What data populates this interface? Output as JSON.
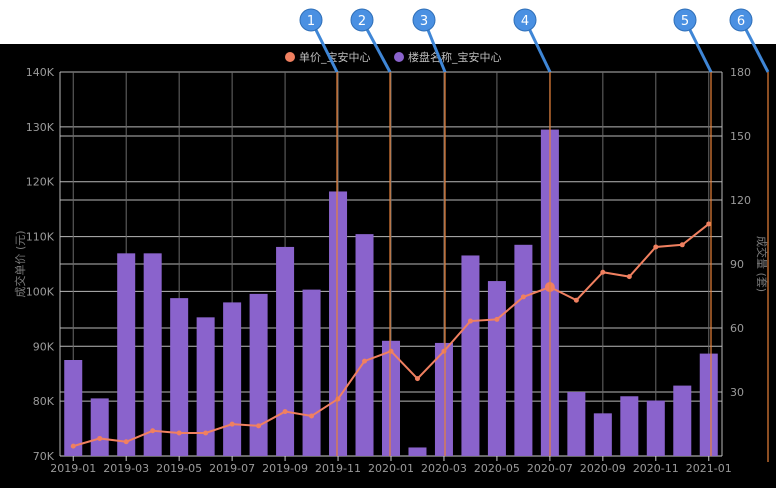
{
  "chart_data": {
    "type": "bar",
    "categories": [
      "2019-01",
      "2019-02",
      "2019-03",
      "2019-04",
      "2019-05",
      "2019-06",
      "2019-07",
      "2019-08",
      "2019-09",
      "2019-10",
      "2019-11",
      "2019-12",
      "2020-01",
      "2020-02",
      "2020-03",
      "2020-04",
      "2020-05",
      "2020-06",
      "2020-07",
      "2020-08",
      "2020-09",
      "2020-10",
      "2020-11",
      "2020-12",
      "2021-01"
    ],
    "x_tick_labels": [
      "2019-01",
      "2019-03",
      "2019-05",
      "2019-07",
      "2019-09",
      "2019-11",
      "2020-01",
      "2020-03",
      "2020-05",
      "2020-07",
      "2020-09",
      "2020-11",
      "2021-01"
    ],
    "y_left": {
      "label": "成交单价 (元)",
      "ticks": [
        "70K",
        "80K",
        "90K",
        "100K",
        "110K",
        "120K",
        "130K",
        "140K"
      ],
      "min": 70000,
      "max": 140000
    },
    "y_right": {
      "label": "成交量 (套)",
      "ticks": [
        "30",
        "60",
        "90",
        "120",
        "150",
        "180"
      ],
      "min": 0,
      "max": 180
    },
    "series": [
      {
        "name": "单价_宝安中心",
        "type": "line",
        "axis": "left",
        "color": "#f08060",
        "values": [
          71800,
          73200,
          72600,
          74600,
          74200,
          74200,
          75800,
          75500,
          78100,
          77300,
          80400,
          87300,
          89100,
          84100,
          89100,
          94600,
          94900,
          99000,
          100800,
          98400,
          103500,
          102700,
          108100,
          108500,
          112300
        ]
      },
      {
        "name": "楼盘名称_宝安中心",
        "type": "bar",
        "axis": "right",
        "color": "#8a63cc",
        "values": [
          45,
          27,
          95,
          95,
          74,
          65,
          72,
          76,
          98,
          78,
          124,
          104,
          54,
          4,
          53,
          94,
          82,
          99,
          153,
          30,
          20,
          28,
          26,
          33,
          48
        ]
      }
    ],
    "annotations": [
      "1",
      "2",
      "3",
      "4",
      "5",
      "6"
    ]
  }
}
